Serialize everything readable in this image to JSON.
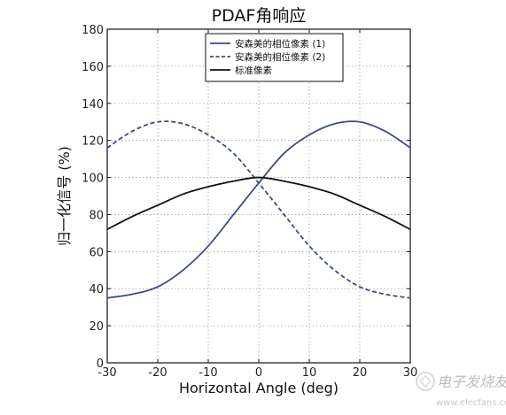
{
  "chart_data": {
    "type": "line",
    "title": "PDAF角响应",
    "xlabel": "Horizontal Angle (deg)",
    "ylabel": "归一化信号 (%)",
    "xlim": [
      -30,
      30
    ],
    "ylim": [
      0,
      180
    ],
    "xticks": [
      -30,
      -20,
      -10,
      0,
      10,
      20,
      30
    ],
    "yticks": [
      0,
      20,
      40,
      60,
      80,
      100,
      120,
      140,
      160,
      180
    ],
    "grid": true,
    "legend_position": "top-center",
    "series": [
      {
        "name": "安森美的相位像素 (1)",
        "style": "solid",
        "color": "#3d4a86",
        "x": [
          -30,
          -25,
          -20,
          -15,
          -10,
          -5,
          0,
          5,
          10,
          15,
          20,
          25,
          30
        ],
        "y": [
          35,
          37,
          41,
          50,
          63,
          80,
          97,
          113,
          123,
          129,
          130,
          125,
          116
        ]
      },
      {
        "name": "安森美的相位像素 (2)",
        "style": "dashed",
        "color": "#3d4a86",
        "x": [
          -30,
          -25,
          -20,
          -15,
          -10,
          -5,
          0,
          5,
          10,
          15,
          20,
          25,
          30
        ],
        "y": [
          116,
          125,
          130,
          129,
          123,
          113,
          97,
          80,
          63,
          50,
          41,
          37,
          35
        ]
      },
      {
        "name": "标准像素",
        "style": "solid",
        "color": "#111111",
        "x": [
          -30,
          -25,
          -20,
          -15,
          -10,
          -5,
          0,
          5,
          10,
          15,
          20,
          25,
          30
        ],
        "y": [
          72,
          79,
          85,
          91,
          95,
          98,
          100,
          98,
          95,
          91,
          85,
          79,
          72
        ]
      }
    ]
  },
  "watermark": {
    "text": "电子发烧友",
    "url": "www.elecfans.com"
  }
}
